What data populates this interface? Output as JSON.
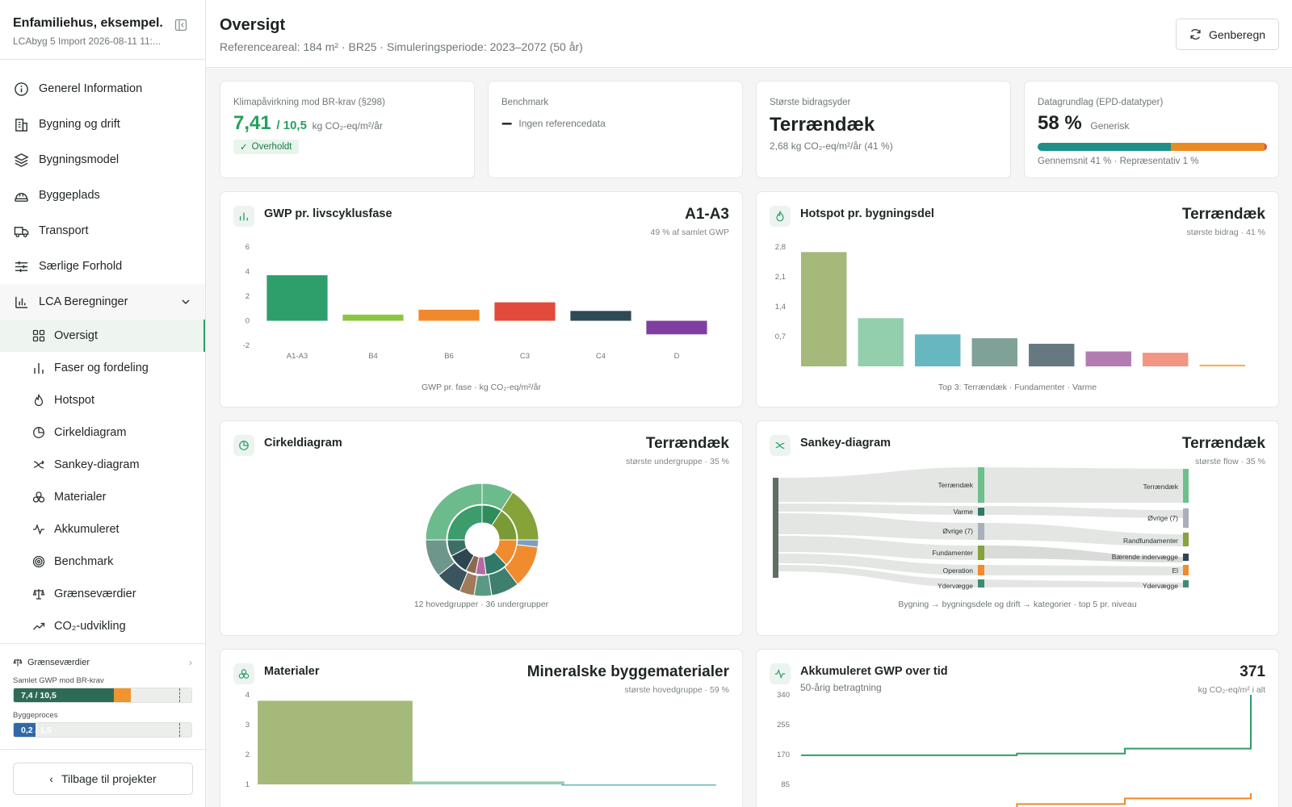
{
  "project": {
    "title": "Enfamiliehus, eksempel...",
    "subtitle": "LCAbyg 5 Import 2026-08-11 11:..."
  },
  "nav": {
    "items": [
      {
        "label": "Generel Information",
        "icon": "info-icon"
      },
      {
        "label": "Bygning og drift",
        "icon": "building-icon"
      },
      {
        "label": "Bygningsmodel",
        "icon": "layers-icon"
      },
      {
        "label": "Byggeplads",
        "icon": "hardhat-icon"
      },
      {
        "label": "Transport",
        "icon": "truck-icon"
      },
      {
        "label": "Særlige Forhold",
        "icon": "sliders-icon"
      }
    ],
    "group": {
      "label": "LCA Beregninger",
      "icon": "bar-chart-icon"
    },
    "sub_items": [
      {
        "label": "Oversigt",
        "icon": "grid-icon"
      },
      {
        "label": "Faser og fordeling",
        "icon": "bars-icon"
      },
      {
        "label": "Hotspot",
        "icon": "flame-icon"
      },
      {
        "label": "Cirkeldiagram",
        "icon": "pie-icon"
      },
      {
        "label": "Sankey-diagram",
        "icon": "flow-icon"
      },
      {
        "label": "Materialer",
        "icon": "materials-icon"
      },
      {
        "label": "Akkumuleret",
        "icon": "activity-icon"
      },
      {
        "label": "Benchmark",
        "icon": "target-icon"
      },
      {
        "label": "Grænseværdier",
        "icon": "scale-icon"
      },
      {
        "label": "CO₂-udvikling",
        "icon": "trend-icon"
      }
    ],
    "active": "Oversigt"
  },
  "limits": {
    "title": "Grænseværdier",
    "bars": [
      {
        "label": "Samlet GWP mod BR-krav",
        "text": "7,4 / 10,5",
        "value": 7.41,
        "limit": 10.5,
        "colors": [
          "#2e6b56",
          "#f0942d"
        ]
      },
      {
        "label": "Byggeproces",
        "text": "0,2 / 1,5",
        "value": 0.2,
        "limit": 1.5,
        "colors": [
          "#2f6aa8"
        ]
      }
    ]
  },
  "back_button": "Tilbage til projekter",
  "header": {
    "title": "Oversigt",
    "subtitle": "Referenceareal: 184 m² · BR25 · Simuleringsperiode: 2023–2072 (50 år)",
    "recalc_label": "Genberegn"
  },
  "kpis": {
    "climate": {
      "label": "Klimapåvirkning mod BR-krav (§298)",
      "value": "7,41",
      "limit": "/ 10,5",
      "unit": "kg CO₂-eq/m²/år",
      "badge": "Overholdt"
    },
    "benchmark": {
      "label": "Benchmark",
      "value": "–",
      "note": "Ingen referencedata"
    },
    "contributor": {
      "label": "Største bidragsyder",
      "value": "Terrændæk",
      "note": "2,68 kg CO₂-eq/m²/år (41 %)"
    },
    "data_basis": {
      "label": "Datagrundlag (EPD-datatyper)",
      "value": "58 %",
      "value_note": "Generisk",
      "note": "Gennemsnit 41 % · Repræsentativ 1 %",
      "shares": [
        58,
        41,
        1
      ],
      "colors": [
        "#1f8f8a",
        "#ea8a1f",
        "#d9534f"
      ]
    }
  },
  "panels": {
    "gwp": {
      "title": "GWP pr. livscyklusfase",
      "right_big": "A1-A3",
      "right_small": "49 % af samlet GWP",
      "caption": "GWP pr. fase · kg CO₂-eq/m²/år",
      "icon": "bar-chart-icon"
    },
    "hotspot": {
      "title": "Hotspot pr. bygningsdel",
      "right_big": "Terrændæk",
      "right_small": "største bidrag · 41 %",
      "caption": "Top 3: Terrændæk · Fundamenter · Varme",
      "icon": "flame-icon"
    },
    "pie": {
      "title": "Cirkeldiagram",
      "right_big": "Terrændæk",
      "right_small": "største undergruppe · 35 %",
      "caption": "12 hovedgrupper · 36 undergrupper",
      "icon": "pie-icon"
    },
    "sankey": {
      "title": "Sankey-diagram",
      "right_big": "Terrændæk",
      "right_small": "største flow · 35 %",
      "caption": "Bygning → bygningsdele og drift → kategorier · top 5 pr. niveau",
      "icon": "flow-icon"
    },
    "materials": {
      "title": "Materialer",
      "right_big": "Mineralske byggematerialer",
      "right_small": "største hovedgruppe · 59 %",
      "icon": "materials-icon"
    },
    "accum": {
      "title": "Akkumuleret GWP over tid",
      "subtitle": "50-årig betragtning",
      "right_big": "371",
      "right_small": "kg CO₂-eq/m² i alt",
      "icon": "activity-icon"
    }
  },
  "sankey_labels": {
    "mid": [
      "Terrændæk",
      "Varme",
      "Øvrige (7)",
      "Fundamenter",
      "Operation",
      "Ydervægge"
    ],
    "right": [
      "Terrændæk",
      "Øvrige (7)",
      "Randfundamenter",
      "Bærende indervægge",
      "El",
      "Ydervægge"
    ]
  },
  "chart_data": [
    {
      "type": "bar",
      "categories": [
        "A1-A3",
        "B4",
        "B6",
        "C3",
        "C4",
        "D"
      ],
      "values": [
        3.7,
        0.5,
        0.9,
        1.5,
        0.8,
        -1.1
      ],
      "colors": [
        "#2e9e6a",
        "#8cc63f",
        "#f0892a",
        "#e24b3b",
        "#2f4a55",
        "#7e3fa0"
      ],
      "ylim": [
        -2,
        6
      ],
      "yticks": [
        -2,
        0,
        2,
        4,
        6
      ]
    },
    {
      "type": "bar",
      "categories": [
        "Terrændæk",
        "Fundamenter",
        "Varme",
        "",
        "",
        "",
        "",
        ""
      ],
      "values": [
        2.68,
        1.13,
        0.75,
        0.66,
        0.53,
        0.35,
        0.32,
        0.04
      ],
      "colors": [
        "#a5b97a",
        "#93cfad",
        "#67b7c0",
        "#7fa197",
        "#667880",
        "#b27cb1",
        "#f29585",
        "#f3b54a"
      ],
      "ylim": [
        0,
        2.8
      ],
      "yticks": [
        0.7,
        1.4,
        2.1,
        2.8
      ],
      "yticklabels": [
        "0,7",
        "1,4",
        "2,1",
        "2,8"
      ]
    },
    {
      "type": "bar",
      "categories": [
        "Mineralske byggematerialer",
        "",
        ""
      ],
      "values": [
        3.8,
        1.1,
        1.0
      ],
      "colors": [
        "#a5b97a",
        "#93cfad",
        "#67b7c0"
      ],
      "ylim": [
        1,
        4
      ],
      "yticks": [
        1,
        2,
        3,
        4
      ]
    },
    {
      "type": "line",
      "x": [
        0,
        12,
        24,
        36,
        50
      ],
      "series": [
        {
          "values": [
            168,
            168,
            173,
            187,
            340
          ],
          "color": "#2e9e6a"
        },
        {
          "values": [
            0,
            14,
            29,
            45,
            60
          ],
          "color": "#f0892a"
        }
      ],
      "ylim": [
        0,
        340
      ],
      "yticks": [
        85,
        170,
        255,
        340
      ]
    }
  ]
}
